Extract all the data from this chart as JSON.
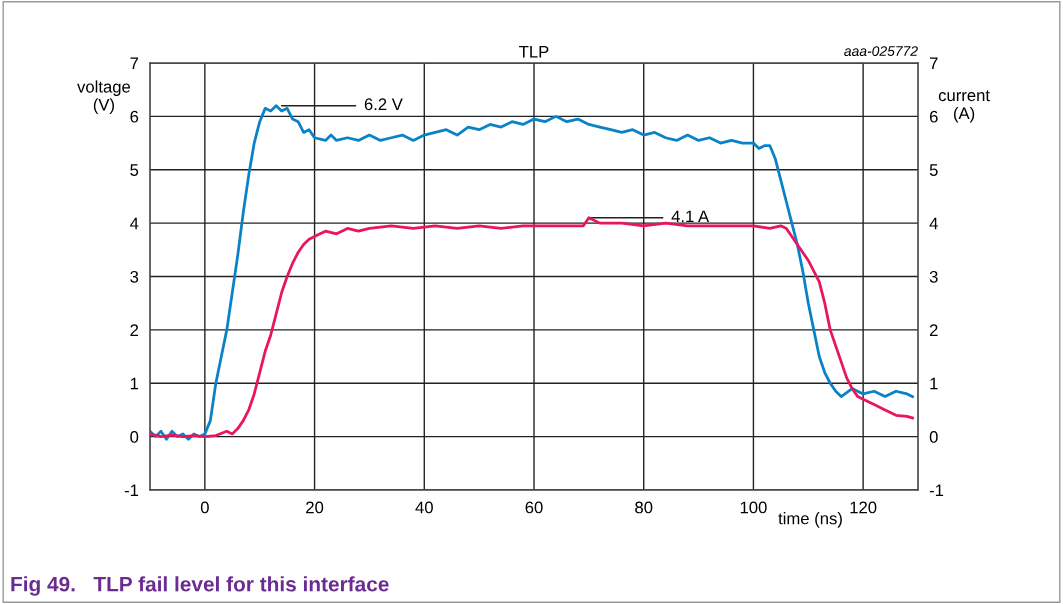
{
  "chart_data": {
    "type": "line",
    "title": "TLP",
    "xlabel": "time (ns)",
    "ylabel": "voltage\n(V)",
    "y2label": "current\n(A)",
    "xlim": [
      -10,
      130
    ],
    "xticks": [
      0,
      20,
      40,
      60,
      80,
      100,
      120
    ],
    "ylim": [
      -1,
      7
    ],
    "yticks": [
      -1,
      0,
      1,
      2,
      3,
      4,
      5,
      6,
      7
    ],
    "y2lim": [
      -1,
      7
    ],
    "y2ticks": [
      -1,
      0,
      1,
      2,
      3,
      4,
      5,
      6,
      7
    ],
    "grid": true,
    "line_style": "solid",
    "marker": "none",
    "series": [
      {
        "color": "#0a82c8",
        "x": [
          -10,
          -9,
          -8,
          -7,
          -6,
          -5,
          -4,
          -3,
          -2,
          -1,
          0,
          1,
          2,
          3,
          4,
          5,
          6,
          7,
          8,
          9,
          10,
          11,
          12,
          13,
          14,
          15,
          16,
          17,
          18,
          19,
          20,
          22,
          23,
          24,
          26,
          28,
          30,
          32,
          34,
          36,
          38,
          40,
          42,
          44,
          46,
          48,
          50,
          52,
          54,
          56,
          58,
          60,
          62,
          64,
          66,
          68,
          70,
          72,
          74,
          76,
          78,
          80,
          82,
          84,
          86,
          88,
          90,
          92,
          94,
          96,
          98,
          100,
          101,
          102,
          103,
          104,
          105,
          106,
          107,
          108,
          109,
          110,
          111,
          112,
          113,
          114,
          115,
          116,
          118,
          120,
          122,
          124,
          126,
          128,
          129
        ],
        "values": [
          0.1,
          0.0,
          0.1,
          -0.05,
          0.1,
          0.0,
          0.05,
          -0.05,
          0.05,
          0.0,
          0.05,
          0.3,
          1.0,
          1.5,
          2.0,
          2.7,
          3.4,
          4.2,
          4.9,
          5.5,
          5.9,
          6.15,
          6.1,
          6.2,
          6.1,
          6.15,
          5.95,
          5.9,
          5.7,
          5.75,
          5.6,
          5.55,
          5.65,
          5.55,
          5.6,
          5.55,
          5.65,
          5.55,
          5.6,
          5.65,
          5.55,
          5.65,
          5.7,
          5.75,
          5.65,
          5.8,
          5.75,
          5.85,
          5.8,
          5.9,
          5.85,
          5.95,
          5.9,
          6.0,
          5.9,
          5.95,
          5.85,
          5.8,
          5.75,
          5.7,
          5.75,
          5.65,
          5.7,
          5.6,
          5.55,
          5.65,
          5.55,
          5.6,
          5.5,
          5.55,
          5.5,
          5.5,
          5.4,
          5.45,
          5.45,
          5.2,
          4.8,
          4.4,
          4.0,
          3.6,
          3.1,
          2.5,
          2.0,
          1.5,
          1.2,
          1.0,
          0.85,
          0.75,
          0.9,
          0.8,
          0.85,
          0.75,
          0.85,
          0.8,
          0.75
        ]
      },
      {
        "color": "#e8175d",
        "axis": "y2",
        "x": [
          -10,
          -8,
          -6,
          -4,
          -2,
          0,
          2,
          4,
          5,
          6,
          7,
          8,
          9,
          10,
          11,
          12,
          13,
          14,
          15,
          16,
          17,
          18,
          19,
          20,
          21,
          22,
          24,
          26,
          28,
          30,
          34,
          38,
          42,
          46,
          50,
          54,
          58,
          62,
          66,
          69,
          70,
          72,
          76,
          80,
          84,
          88,
          92,
          96,
          100,
          103,
          105,
          106,
          107,
          108,
          109,
          110,
          111,
          112,
          113,
          114,
          115,
          116,
          117,
          118,
          119,
          120,
          122,
          124,
          126,
          128,
          129
        ],
        "values": [
          0.05,
          0.0,
          0.03,
          0.0,
          0.02,
          0.0,
          0.02,
          0.1,
          0.05,
          0.15,
          0.3,
          0.5,
          0.8,
          1.2,
          1.6,
          1.9,
          2.3,
          2.7,
          3.0,
          3.25,
          3.45,
          3.6,
          3.7,
          3.75,
          3.8,
          3.85,
          3.8,
          3.9,
          3.85,
          3.9,
          3.95,
          3.9,
          3.95,
          3.9,
          3.95,
          3.9,
          3.95,
          3.95,
          3.95,
          3.95,
          4.1,
          4.0,
          4.0,
          3.95,
          4.0,
          3.95,
          3.95,
          3.95,
          3.95,
          3.9,
          3.95,
          3.9,
          3.75,
          3.6,
          3.45,
          3.3,
          3.1,
          2.9,
          2.5,
          2.0,
          1.7,
          1.4,
          1.1,
          0.9,
          0.75,
          0.7,
          0.6,
          0.5,
          0.4,
          0.38,
          0.35
        ]
      }
    ],
    "annotations": [
      {
        "text": "6.2 V",
        "x": 14,
        "y": 6.2
      },
      {
        "text": "4.1 A",
        "x": 70,
        "y": 4.1
      },
      "aaa-025772",
      "Fig 49.   TLP fail level for this interface"
    ]
  }
}
